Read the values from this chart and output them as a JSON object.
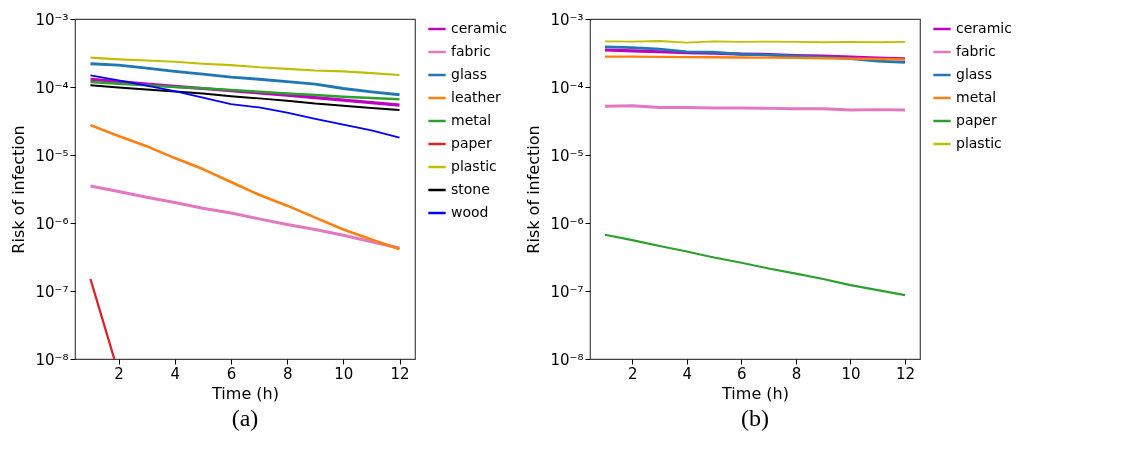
{
  "chart_data": [
    {
      "type": "line",
      "xlabel": "Time (h)",
      "ylabel": "Risk of infection",
      "annotations": [
        "(a)"
      ],
      "log": "y",
      "grid": false,
      "legend": "right",
      "xlim": [
        0.45,
        12.55
      ],
      "xticks": [
        2,
        4,
        6,
        8,
        10,
        12
      ],
      "ylim": [
        1e-08,
        0.001
      ],
      "yticks": [
        {
          "value": 1e-08,
          "label": "10⁻⁸"
        },
        {
          "value": 1e-07,
          "label": "10⁻⁷"
        },
        {
          "value": 1e-06,
          "label": "10⁻⁶"
        },
        {
          "value": 1e-05,
          "label": "10⁻⁵"
        },
        {
          "value": 0.0001,
          "label": "10⁻⁴"
        },
        {
          "value": 0.001,
          "label": "10⁻³"
        }
      ],
      "x": [
        1,
        2,
        3,
        4,
        5,
        6,
        7,
        8,
        9,
        10,
        11,
        12
      ],
      "series": [
        {
          "name": "ceramic",
          "color": "#bf00bf",
          "values": [
            0.00013,
            0.00012,
            0.00011,
            0.000102,
            9.5e-05,
            8.8e-05,
            8.2e-05,
            7.6e-05,
            7e-05,
            6.4e-05,
            5.9e-05,
            5.4e-05
          ]
        },
        {
          "name": "fabric",
          "color": "#e377c2",
          "values": [
            3.5e-06,
            2.9e-06,
            2.4e-06,
            2e-06,
            1.65e-06,
            1.4e-06,
            1.15e-06,
            9.5e-07,
            8e-07,
            6.6e-07,
            5.3e-07,
            4.3e-07
          ]
        },
        {
          "name": "glass",
          "color": "#1f77b4",
          "values": [
            0.00022,
            0.00021,
            0.00019,
            0.00017,
            0.000155,
            0.00014,
            0.00013,
            0.00012,
            0.00011,
            9.5e-05,
            8.5e-05,
            7.7e-05
          ]
        },
        {
          "name": "leather",
          "color": "#ff7f0e",
          "values": [
            2.75e-05,
            1.9e-05,
            1.35e-05,
            9e-06,
            6.2e-06,
            4e-06,
            2.6e-06,
            1.8e-06,
            1.2e-06,
            8e-07,
            5.7e-07,
            4.1e-07
          ]
        },
        {
          "name": "metal",
          "color": "#2ca02c",
          "values": [
            0.000118,
            0.000112,
            0.000106,
            0.0001,
            9.6e-05,
            9e-05,
            8.5e-05,
            8e-05,
            7.6e-05,
            7.2e-05,
            6.9e-05,
            6.6e-05
          ]
        },
        {
          "name": "paper",
          "color": "#d62728",
          "x": [
            1,
            1.85
          ],
          "values": [
            1.5e-07,
            1e-08
          ]
        },
        {
          "name": "plastic",
          "color": "#bfbf00",
          "values": [
            0.00027,
            0.000255,
            0.000245,
            0.000235,
            0.00022,
            0.00021,
            0.000195,
            0.000185,
            0.000175,
            0.00017,
            0.00016,
            0.00015
          ]
        },
        {
          "name": "stone",
          "color": "#000000",
          "values": [
            0.000106,
            9.8e-05,
            9.2e-05,
            8.6e-05,
            8e-05,
            7.3e-05,
            6.8e-05,
            6.3e-05,
            5.7e-05,
            5.3e-05,
            4.9e-05,
            4.6e-05
          ]
        },
        {
          "name": "wood",
          "color": "#0000ff",
          "values": [
            0.000148,
            0.000125,
            0.000105,
            8.7e-05,
            7e-05,
            5.6e-05,
            5e-05,
            4.2e-05,
            3.4e-05,
            2.8e-05,
            2.3e-05,
            1.8e-05
          ]
        }
      ]
    },
    {
      "type": "line",
      "xlabel": "Time (h)",
      "ylabel": "Risk of infection",
      "annotations": [
        "(b)"
      ],
      "log": "y",
      "grid": false,
      "legend": "right",
      "xlim": [
        0.45,
        12.55
      ],
      "xticks": [
        2,
        4,
        6,
        8,
        10,
        12
      ],
      "ylim": [
        1e-08,
        0.001
      ],
      "yticks": [
        {
          "value": 1e-08,
          "label": "10⁻⁸"
        },
        {
          "value": 1e-07,
          "label": "10⁻⁷"
        },
        {
          "value": 1e-06,
          "label": "10⁻⁶"
        },
        {
          "value": 1e-05,
          "label": "10⁻⁵"
        },
        {
          "value": 0.0001,
          "label": "10⁻⁴"
        },
        {
          "value": 0.001,
          "label": "10⁻³"
        }
      ],
      "x": [
        1,
        2,
        3,
        4,
        5,
        6,
        7,
        8,
        9,
        10,
        11,
        12
      ],
      "series": [
        {
          "name": "ceramic",
          "color": "#bf00bf",
          "values": [
            0.00035,
            0.00034,
            0.00033,
            0.00032,
            0.000315,
            0.000305,
            0.0003,
            0.00029,
            0.000285,
            0.000275,
            0.000265,
            0.00026
          ]
        },
        {
          "name": "fabric",
          "color": "#e377c2",
          "values": [
            5.2e-05,
            5.3e-05,
            5e-05,
            5e-05,
            4.9e-05,
            4.9e-05,
            4.85e-05,
            4.8e-05,
            4.8e-05,
            4.6e-05,
            4.65e-05,
            4.6e-05
          ]
        },
        {
          "name": "glass",
          "color": "#1f77b4",
          "values": [
            0.00039,
            0.00038,
            0.00036,
            0.00033,
            0.000325,
            0.000305,
            0.000295,
            0.000285,
            0.000275,
            0.00026,
            0.00024,
            0.00023
          ]
        },
        {
          "name": "metal",
          "color": "#ff7f0e",
          "values": [
            0.00028,
            0.00028,
            0.000278,
            0.000275,
            0.000274,
            0.000272,
            0.00027,
            0.000268,
            0.000265,
            0.000262,
            0.000258,
            0.000255
          ]
        },
        {
          "name": "paper",
          "color": "#2ca02c",
          "values": [
            6.7e-07,
            5.6e-07,
            4.6e-07,
            3.8e-07,
            3.1e-07,
            2.6e-07,
            2.15e-07,
            1.8e-07,
            1.5e-07,
            1.22e-07,
            1.03e-07,
            8.7e-08
          ]
        },
        {
          "name": "plastic",
          "color": "#bfbf00",
          "values": [
            0.00047,
            0.000465,
            0.000475,
            0.00045,
            0.00047,
            0.00046,
            0.000465,
            0.00046,
            0.000455,
            0.00046,
            0.000455,
            0.00046
          ]
        }
      ]
    }
  ]
}
